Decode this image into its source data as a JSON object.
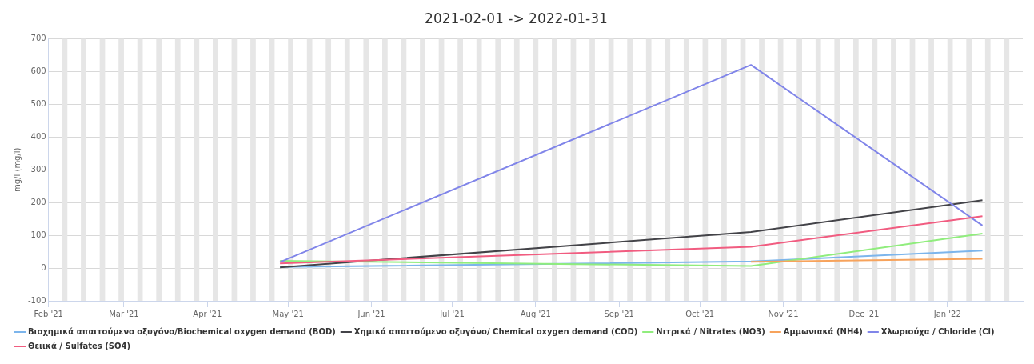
{
  "chart_data": {
    "type": "line",
    "title": "2021-02-01 -> 2022-01-31",
    "ylabel": "mg/l (mg/l)",
    "xlim": [
      "2021-02-01",
      "2022-01-29"
    ],
    "xticks": [
      {
        "value": "2021-02-01",
        "label": "Feb '21"
      },
      {
        "value": "2021-03-01",
        "label": "Mar '21"
      },
      {
        "value": "2021-04-01",
        "label": "Apr '21"
      },
      {
        "value": "2021-05-01",
        "label": "May '21"
      },
      {
        "value": "2021-06-01",
        "label": "Jun '21"
      },
      {
        "value": "2021-07-01",
        "label": "Jul '21"
      },
      {
        "value": "2021-08-01",
        "label": "Aug '21"
      },
      {
        "value": "2021-09-01",
        "label": "Sep '21"
      },
      {
        "value": "2021-10-01",
        "label": "Oct '21"
      },
      {
        "value": "2021-11-01",
        "label": "Nov '21"
      },
      {
        "value": "2021-12-01",
        "label": "Dec '21"
      },
      {
        "value": "2022-01-01",
        "label": "Jan '22"
      }
    ],
    "ylim": [
      -100,
      700
    ],
    "yticks": [
      -100,
      0,
      100,
      200,
      300,
      400,
      500,
      600,
      700
    ],
    "grid": "y",
    "legend": "bottom",
    "marker": "none",
    "line_style": "solid",
    "series": [
      {
        "name": "Βιοχημικά απαιτούμενο οξυγόνο/Biochemical oxygen demand (BOD)",
        "color": "#7cb5ec",
        "x": [
          "2021-04-28",
          "2021-10-20",
          "2022-01-14"
        ],
        "values": [
          3,
          20,
          53
        ]
      },
      {
        "name": "Χημικά απαιτούμενο οξυγόνο/ Chemical oxygen demand (COD)",
        "color": "#434348",
        "x": [
          "2021-04-28",
          "2021-10-20",
          "2022-01-14"
        ],
        "values": [
          2,
          110,
          207
        ]
      },
      {
        "name": "Νιτρικά / Nitrates (NO3)",
        "color": "#90ed7d",
        "x": [
          "2021-04-28",
          "2021-10-20",
          "2022-01-14"
        ],
        "values": [
          22,
          6,
          105
        ]
      },
      {
        "name": "Αμμωνιακά (NH4)",
        "color": "#f7a35c",
        "x": [
          "2021-10-20",
          "2022-01-14"
        ],
        "values": [
          19,
          28
        ]
      },
      {
        "name": "Χλωριούχα / Chloride (Cl)",
        "color": "#8085e9",
        "x": [
          "2021-04-28",
          "2021-10-20",
          "2022-01-14"
        ],
        "values": [
          18,
          620,
          130
        ]
      },
      {
        "name": "Θειικά / Sulfates (SO4)",
        "color": "#f15c80",
        "x": [
          "2021-04-28",
          "2021-10-20",
          "2022-01-14"
        ],
        "values": [
          14,
          65,
          158
        ]
      }
    ],
    "bands": [
      {
        "axis": "x",
        "from": "2021-02-06",
        "to": "2021-02-08",
        "color": "#e6e6e6"
      },
      {
        "axis": "x",
        "from": "2021-02-13",
        "to": "2021-02-15",
        "color": "#e6e6e6"
      },
      {
        "axis": "x",
        "from": "2021-02-20",
        "to": "2021-02-22",
        "color": "#e6e6e6"
      },
      {
        "axis": "x",
        "from": "2021-02-27",
        "to": "2021-03-01",
        "color": "#e6e6e6"
      },
      {
        "axis": "x",
        "from": "2021-03-06",
        "to": "2021-03-08",
        "color": "#e6e6e6"
      },
      {
        "axis": "x",
        "from": "2021-03-13",
        "to": "2021-03-15",
        "color": "#e6e6e6"
      },
      {
        "axis": "x",
        "from": "2021-03-20",
        "to": "2021-03-22",
        "color": "#e6e6e6"
      },
      {
        "axis": "x",
        "from": "2021-03-27",
        "to": "2021-03-29",
        "color": "#e6e6e6"
      },
      {
        "axis": "x",
        "from": "2021-04-03",
        "to": "2021-04-05",
        "color": "#e6e6e6"
      },
      {
        "axis": "x",
        "from": "2021-04-10",
        "to": "2021-04-12",
        "color": "#e6e6e6"
      },
      {
        "axis": "x",
        "from": "2021-04-17",
        "to": "2021-04-19",
        "color": "#e6e6e6"
      },
      {
        "axis": "x",
        "from": "2021-04-24",
        "to": "2021-04-26",
        "color": "#e6e6e6"
      },
      {
        "axis": "x",
        "from": "2021-05-01",
        "to": "2021-05-03",
        "color": "#e6e6e6"
      },
      {
        "axis": "x",
        "from": "2021-05-08",
        "to": "2021-05-10",
        "color": "#e6e6e6"
      },
      {
        "axis": "x",
        "from": "2021-05-15",
        "to": "2021-05-17",
        "color": "#e6e6e6"
      },
      {
        "axis": "x",
        "from": "2021-05-22",
        "to": "2021-05-24",
        "color": "#e6e6e6"
      },
      {
        "axis": "x",
        "from": "2021-05-29",
        "to": "2021-05-31",
        "color": "#e6e6e6"
      },
      {
        "axis": "x",
        "from": "2021-06-05",
        "to": "2021-06-07",
        "color": "#e6e6e6"
      },
      {
        "axis": "x",
        "from": "2021-06-12",
        "to": "2021-06-14",
        "color": "#e6e6e6"
      },
      {
        "axis": "x",
        "from": "2021-06-19",
        "to": "2021-06-21",
        "color": "#e6e6e6"
      },
      {
        "axis": "x",
        "from": "2021-06-26",
        "to": "2021-06-28",
        "color": "#e6e6e6"
      },
      {
        "axis": "x",
        "from": "2021-07-03",
        "to": "2021-07-05",
        "color": "#e6e6e6"
      },
      {
        "axis": "x",
        "from": "2021-07-10",
        "to": "2021-07-12",
        "color": "#e6e6e6"
      },
      {
        "axis": "x",
        "from": "2021-07-17",
        "to": "2021-07-19",
        "color": "#e6e6e6"
      },
      {
        "axis": "x",
        "from": "2021-07-24",
        "to": "2021-07-26",
        "color": "#e6e6e6"
      },
      {
        "axis": "x",
        "from": "2021-07-31",
        "to": "2021-08-02",
        "color": "#e6e6e6"
      },
      {
        "axis": "x",
        "from": "2021-08-07",
        "to": "2021-08-09",
        "color": "#e6e6e6"
      },
      {
        "axis": "x",
        "from": "2021-08-14",
        "to": "2021-08-16",
        "color": "#e6e6e6"
      },
      {
        "axis": "x",
        "from": "2021-08-21",
        "to": "2021-08-23",
        "color": "#e6e6e6"
      },
      {
        "axis": "x",
        "from": "2021-08-28",
        "to": "2021-08-30",
        "color": "#e6e6e6"
      },
      {
        "axis": "x",
        "from": "2021-09-04",
        "to": "2021-09-06",
        "color": "#e6e6e6"
      },
      {
        "axis": "x",
        "from": "2021-09-11",
        "to": "2021-09-13",
        "color": "#e6e6e6"
      },
      {
        "axis": "x",
        "from": "2021-09-18",
        "to": "2021-09-20",
        "color": "#e6e6e6"
      },
      {
        "axis": "x",
        "from": "2021-09-25",
        "to": "2021-09-27",
        "color": "#e6e6e6"
      },
      {
        "axis": "x",
        "from": "2021-10-02",
        "to": "2021-10-04",
        "color": "#e6e6e6"
      },
      {
        "axis": "x",
        "from": "2021-10-09",
        "to": "2021-10-11",
        "color": "#e6e6e6"
      },
      {
        "axis": "x",
        "from": "2021-10-16",
        "to": "2021-10-18",
        "color": "#e6e6e6"
      },
      {
        "axis": "x",
        "from": "2021-10-23",
        "to": "2021-10-25",
        "color": "#e6e6e6"
      },
      {
        "axis": "x",
        "from": "2021-10-30",
        "to": "2021-11-01",
        "color": "#e6e6e6"
      },
      {
        "axis": "x",
        "from": "2021-11-06",
        "to": "2021-11-08",
        "color": "#e6e6e6"
      },
      {
        "axis": "x",
        "from": "2021-11-13",
        "to": "2021-11-15",
        "color": "#e6e6e6"
      },
      {
        "axis": "x",
        "from": "2021-11-20",
        "to": "2021-11-22",
        "color": "#e6e6e6"
      },
      {
        "axis": "x",
        "from": "2021-11-27",
        "to": "2021-11-29",
        "color": "#e6e6e6"
      },
      {
        "axis": "x",
        "from": "2021-12-04",
        "to": "2021-12-06",
        "color": "#e6e6e6"
      },
      {
        "axis": "x",
        "from": "2021-12-11",
        "to": "2021-12-13",
        "color": "#e6e6e6"
      },
      {
        "axis": "x",
        "from": "2021-12-18",
        "to": "2021-12-20",
        "color": "#e6e6e6"
      },
      {
        "axis": "x",
        "from": "2021-12-25",
        "to": "2021-12-27",
        "color": "#e6e6e6"
      },
      {
        "axis": "x",
        "from": "2022-01-01",
        "to": "2022-01-03",
        "color": "#e6e6e6"
      },
      {
        "axis": "x",
        "from": "2022-01-08",
        "to": "2022-01-10",
        "color": "#e6e6e6"
      },
      {
        "axis": "x",
        "from": "2022-01-15",
        "to": "2022-01-17",
        "color": "#e6e6e6"
      },
      {
        "axis": "x",
        "from": "2022-01-22",
        "to": "2022-01-24",
        "color": "#e6e6e6"
      }
    ]
  }
}
